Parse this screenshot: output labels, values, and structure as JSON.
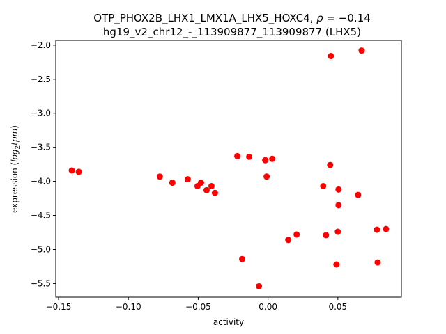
{
  "chart_data": {
    "type": "scatter",
    "title_line1": "OTP_PHOX2B_LHX1_LMX1A_LHX5_HOXC4, ",
    "title_rho_symbol": "ρ",
    "title_rho_value": " = −0.14",
    "title_line2": "hg19_v2_chr12_-_113909877_113909877 (LHX5)",
    "xlabel": "activity",
    "ylabel_prefix": "expression (",
    "ylabel_math": "log",
    "ylabel_sub": "2",
    "ylabel_math2": "tpm",
    "ylabel_suffix": ")",
    "xlim": [
      -0.152,
      0.0955
    ],
    "ylim": [
      -5.7,
      -1.93
    ],
    "x_ticks": [
      -0.15,
      -0.1,
      -0.05,
      0.0,
      0.05
    ],
    "x_tick_labels": [
      "−0.15",
      "−0.10",
      "−0.05",
      "0.00",
      "0.05"
    ],
    "y_ticks": [
      -5.5,
      -5.0,
      -4.5,
      -4.0,
      -3.5,
      -3.0,
      -2.5,
      -2.0
    ],
    "y_tick_labels": [
      "−5.5",
      "−5.0",
      "−4.5",
      "−4.0",
      "−3.5",
      "−3.0",
      "−2.5",
      "−2.0"
    ],
    "point_color": "#ff0000",
    "points": [
      {
        "x": -0.1405,
        "y": -3.84
      },
      {
        "x": -0.1355,
        "y": -3.86
      },
      {
        "x": -0.0775,
        "y": -3.93
      },
      {
        "x": -0.0685,
        "y": -4.02
      },
      {
        "x": -0.0575,
        "y": -3.97
      },
      {
        "x": -0.0505,
        "y": -4.07
      },
      {
        "x": -0.048,
        "y": -4.02
      },
      {
        "x": -0.044,
        "y": -4.13
      },
      {
        "x": -0.0405,
        "y": -4.07
      },
      {
        "x": -0.038,
        "y": -4.17
      },
      {
        "x": -0.022,
        "y": -3.63
      },
      {
        "x": -0.0135,
        "y": -3.64
      },
      {
        "x": -0.0185,
        "y": -5.14
      },
      {
        "x": -0.0065,
        "y": -5.54
      },
      {
        "x": -0.002,
        "y": -3.69
      },
      {
        "x": -0.001,
        "y": -3.93
      },
      {
        "x": 0.003,
        "y": -3.67
      },
      {
        "x": 0.0145,
        "y": -4.86
      },
      {
        "x": 0.0205,
        "y": -4.78
      },
      {
        "x": 0.0395,
        "y": -4.07
      },
      {
        "x": 0.0415,
        "y": -4.79
      },
      {
        "x": 0.0445,
        "y": -3.76
      },
      {
        "x": 0.045,
        "y": -2.16
      },
      {
        "x": 0.049,
        "y": -5.22
      },
      {
        "x": 0.05,
        "y": -4.74
      },
      {
        "x": 0.0505,
        "y": -4.12
      },
      {
        "x": 0.0505,
        "y": -4.35
      },
      {
        "x": 0.0645,
        "y": -4.2
      },
      {
        "x": 0.067,
        "y": -2.08
      },
      {
        "x": 0.078,
        "y": -4.71
      },
      {
        "x": 0.0785,
        "y": -5.19
      },
      {
        "x": 0.0845,
        "y": -4.7
      }
    ]
  }
}
